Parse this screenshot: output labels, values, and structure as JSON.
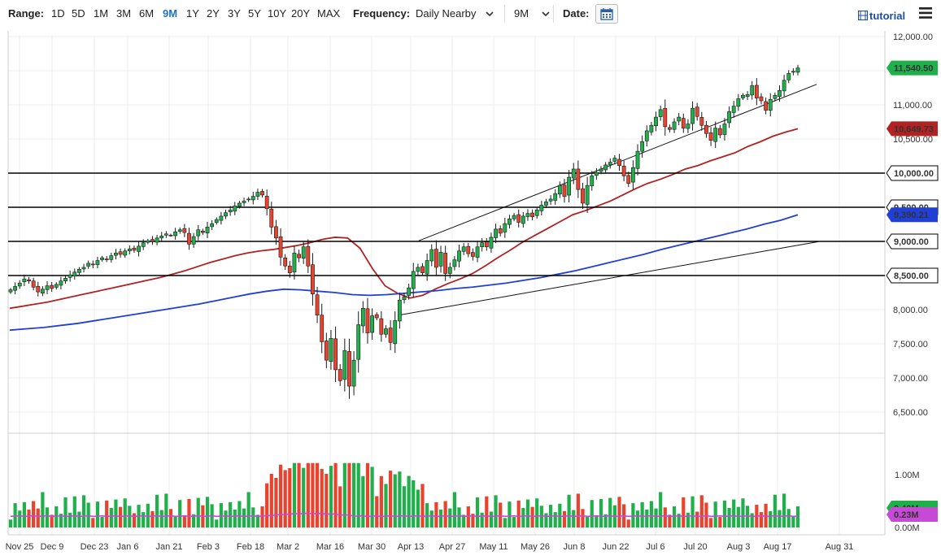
{
  "toolbar": {
    "range_label": "Range:",
    "ranges": [
      "1D",
      "5D",
      "1M",
      "3M",
      "6M",
      "9M",
      "1Y",
      "2Y",
      "3Y",
      "5Y",
      "10Y",
      "20Y",
      "MAX"
    ],
    "active_range": "9M",
    "frequency_label": "Frequency:",
    "frequency_value": "Daily Nearby",
    "period_value": "9M",
    "date_label": "Date:",
    "tutorial_label": "tutorial"
  },
  "colors": {
    "up": "#1fb04b",
    "down": "#e8432e",
    "ma_short": "#b22222",
    "ma_long": "#1f3fd6",
    "vol_avg": "#c64ad6",
    "last_price_tag": "#1fb04b",
    "ma_short_tag": "#b22222",
    "ma_long_tag": "#1f3fd6"
  },
  "chart_data": {
    "type": "candlestick",
    "y_ticks": [
      "12,000.00",
      "11,500.00",
      "11,000.00",
      "10,500.00",
      "10,000.00",
      "9,500.00",
      "9,000.00",
      "8,500.00",
      "8,000.00",
      "7,500.00",
      "7,000.00",
      "6,500.00"
    ],
    "x_ticks": [
      "Nov 25",
      "Dec 9",
      "Dec 23",
      "Jan 6",
      "Jan 21",
      "Feb 3",
      "Feb 18",
      "Mar 2",
      "Mar 16",
      "Mar 30",
      "Apr 13",
      "Apr 27",
      "May 11",
      "May 26",
      "Jun 8",
      "Jun 22",
      "Jul 6",
      "Jul 20",
      "Aug 3",
      "Aug 17",
      "Aug 31"
    ],
    "price_range": [
      6300,
      12050
    ],
    "horizontal_levels": [
      10000,
      9500,
      9000,
      8500
    ],
    "level_labels": [
      "10,000.00",
      "9,500.00",
      "9,000.00",
      "8,500.00"
    ],
    "last_price": 11540.5,
    "last_price_label": "11,540.50",
    "ma_short_value": 10649.73,
    "ma_short_label": "10,649.73",
    "ma_long_value": 9390.21,
    "ma_long_label": "9,390.21",
    "closes": [
      8290,
      8340,
      8390,
      8450,
      8420,
      8330,
      8260,
      8300,
      8350,
      8310,
      8370,
      8420,
      8460,
      8510,
      8550,
      8590,
      8620,
      8680,
      8660,
      8720,
      8760,
      8740,
      8790,
      8830,
      8810,
      8860,
      8890,
      8870,
      8930,
      8980,
      9010,
      9000,
      9050,
      9080,
      9110,
      9090,
      9140,
      9170,
      9130,
      8960,
      9070,
      9170,
      9130,
      9210,
      9260,
      9320,
      9370,
      9420,
      9460,
      9520,
      9560,
      9590,
      9620,
      9660,
      9720,
      9680,
      9480,
      9210,
      9050,
      8770,
      8640,
      8540,
      8830,
      8760,
      8920,
      8640,
      8230,
      7920,
      7530,
      7260,
      7580,
      7120,
      6960,
      7400,
      6880,
      7260,
      7780,
      8020,
      7660,
      7910,
      7880,
      7640,
      7720,
      7520,
      7840,
      8140,
      8190,
      8320,
      8560,
      8620,
      8540,
      8720,
      8880,
      8620,
      8840,
      8530,
      8620,
      8730,
      8860,
      8920,
      8820,
      8780,
      8920,
      8980,
      8920,
      9060,
      9180,
      9120,
      9260,
      9330,
      9380,
      9280,
      9370,
      9410,
      9360,
      9460,
      9530,
      9580,
      9620,
      9700,
      9820,
      9660,
      9940,
      10060,
      9760,
      9560,
      9820,
      9960,
      10010,
      10060,
      10120,
      10160,
      10220,
      10110,
      9960,
      9850,
      10080,
      10320,
      10460,
      10620,
      10700,
      10820,
      10930,
      10680,
      10640,
      10750,
      10820,
      10660,
      10720,
      10950,
      10830,
      10700,
      10580,
      10480,
      10660,
      10560,
      10720,
      10900,
      10980,
      11090,
      11140,
      11150,
      11280,
      11100,
      11060,
      10920,
      11080,
      11140,
      11210,
      11360,
      11460,
      11490,
      11540
    ],
    "ma_short": [
      8020,
      8050,
      8080,
      8110,
      8150,
      8190,
      8230,
      8270,
      8310,
      8350,
      8390,
      8430,
      8470,
      8520,
      8570,
      8630,
      8690,
      8740,
      8790,
      8830,
      8860,
      8880,
      8910,
      8940,
      8980,
      9030,
      9060,
      9050,
      8900,
      8600,
      8350,
      8240,
      8170,
      8210,
      8300,
      8380,
      8450,
      8530,
      8640,
      8760,
      8870,
      8990,
      9090,
      9190,
      9290,
      9390,
      9450,
      9520,
      9590,
      9680,
      9770,
      9850,
      9910,
      9980,
      10060,
      10110,
      10180,
      10240,
      10300,
      10390,
      10460,
      10540,
      10600,
      10650
    ],
    "ma_long": [
      7700,
      7720,
      7740,
      7770,
      7800,
      7840,
      7880,
      7920,
      7960,
      8000,
      8040,
      8080,
      8130,
      8180,
      8230,
      8270,
      8300,
      8290,
      8270,
      8250,
      8220,
      8210,
      8220,
      8240,
      8260,
      8280,
      8310,
      8330,
      8360,
      8390,
      8430,
      8470,
      8520,
      8570,
      8630,
      8690,
      8750,
      8810,
      8880,
      8940,
      9000,
      9060,
      9120,
      9180,
      9250,
      9310,
      9390
    ],
    "channel_upper": [
      [
        9010,
        12000
      ],
      [
        11300,
        12000
      ]
    ],
    "channel_lower": [
      [
        7925,
        11115
      ],
      [
        8995,
        11085
      ]
    ],
    "volume_axis": [
      "1.00M",
      "0.00M"
    ],
    "volume_range": [
      0,
      1.25
    ],
    "volume_last_label": "0.40M",
    "volume_avg_label": "0.23M",
    "volume_avg_value": 0.23,
    "volume_last_value": 0.4
  }
}
